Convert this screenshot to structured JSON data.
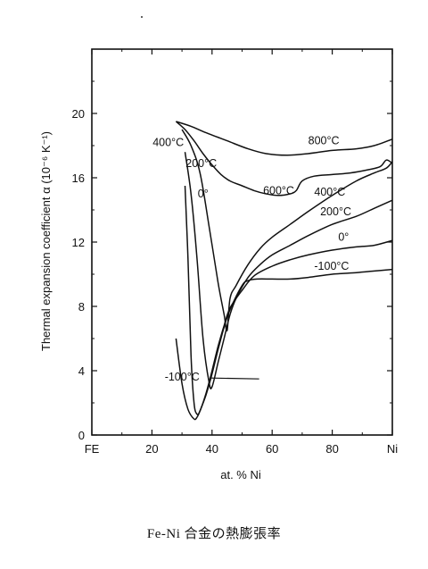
{
  "chart_data": {
    "type": "line",
    "caption": "Fe-Ni 合金の熱膨張率",
    "xlabel": "at. % Ni",
    "ylabel": "Thermal expansion coefficient α (10⁻⁶ K⁻¹)",
    "xlim": [
      0,
      100
    ],
    "ylim": [
      0,
      24
    ],
    "xticks": [
      {
        "value": 0,
        "label": "FE"
      },
      {
        "value": 20,
        "label": "20"
      },
      {
        "value": 40,
        "label": "40"
      },
      {
        "value": 60,
        "label": "60"
      },
      {
        "value": 80,
        "label": "80"
      },
      {
        "value": 100,
        "label": "Ni"
      }
    ],
    "yticks": [
      {
        "value": 0,
        "label": "0"
      },
      {
        "value": 4,
        "label": "4"
      },
      {
        "value": 8,
        "label": "8"
      },
      {
        "value": 12,
        "label": "12"
      },
      {
        "value": 16,
        "label": "16"
      },
      {
        "value": 20,
        "label": "20"
      }
    ],
    "grid": false,
    "legend": "inline labels",
    "series": [
      {
        "name": "800°C",
        "label_at": [
          72,
          18.3
        ],
        "x": [
          28,
          33,
          38,
          45,
          52,
          58,
          65,
          72,
          80,
          88,
          94,
          100
        ],
        "y": [
          19.5,
          19.2,
          18.8,
          18.3,
          17.8,
          17.5,
          17.4,
          17.5,
          17.7,
          17.8,
          18.0,
          18.4
        ]
      },
      {
        "name": "600°C",
        "label_at": [
          57,
          15.2
        ],
        "x": [
          28,
          31,
          34,
          37,
          40,
          43,
          46,
          50,
          54,
          58,
          62,
          66,
          68,
          70,
          74,
          80,
          86,
          92,
          96,
          98,
          100
        ],
        "y": [
          19.5,
          19.0,
          18.3,
          17.5,
          16.8,
          16.2,
          15.8,
          15.5,
          15.2,
          15.0,
          14.9,
          15.0,
          15.2,
          15.8,
          16.1,
          16.2,
          16.3,
          16.5,
          16.7,
          17.1,
          16.9
        ]
      },
      {
        "name": "400°C",
        "label_at": [
          74,
          15.1
        ],
        "x": [
          30,
          33,
          36,
          39,
          42,
          44,
          45,
          46,
          48,
          52,
          56,
          60,
          66,
          72,
          80,
          88,
          94,
          98,
          100
        ],
        "y": [
          19.0,
          18.0,
          16.3,
          13.0,
          9.5,
          7.5,
          6.5,
          8.5,
          9.3,
          10.6,
          11.6,
          12.3,
          13.1,
          13.9,
          14.9,
          15.8,
          16.3,
          16.6,
          17.0
        ]
      },
      {
        "name": "200°C",
        "label_at": [
          76,
          13.9
        ],
        "x": [
          31,
          33,
          35,
          37,
          39,
          40,
          42,
          44,
          46,
          48,
          52,
          56,
          60,
          66,
          72,
          80,
          88,
          94,
          100
        ],
        "y": [
          17.6,
          15.0,
          11.0,
          6.0,
          3.3,
          3.0,
          4.5,
          6.0,
          7.5,
          8.5,
          9.8,
          10.6,
          11.2,
          11.8,
          12.4,
          13.1,
          13.6,
          14.1,
          14.6
        ]
      },
      {
        "name": "0°",
        "label_at": [
          82,
          12.3
        ],
        "x": [
          31,
          32,
          33,
          34,
          35,
          36,
          38,
          40,
          42,
          44,
          46,
          50,
          54,
          60,
          66,
          72,
          80,
          88,
          94,
          100
        ],
        "y": [
          15.5,
          11.0,
          5.0,
          2.0,
          1.3,
          1.5,
          2.6,
          4.0,
          5.5,
          6.8,
          7.9,
          9.0,
          9.9,
          10.5,
          10.9,
          11.2,
          11.5,
          11.7,
          11.8,
          12.1
        ]
      },
      {
        "name": "-100°C",
        "label_at": [
          74,
          10.5
        ],
        "x": [
          28,
          30,
          32,
          34,
          35,
          36,
          38,
          40,
          42,
          44,
          46,
          50,
          52,
          55,
          60,
          66,
          72,
          80,
          88,
          94,
          100
        ],
        "y": [
          6.0,
          3.2,
          1.6,
          1.0,
          1.1,
          1.5,
          2.5,
          3.8,
          5.3,
          6.7,
          7.8,
          9.3,
          9.6,
          9.7,
          9.7,
          9.7,
          9.8,
          10.0,
          10.1,
          10.2,
          10.3
        ]
      }
    ],
    "series_label_positions": {
      "400°C-left": [
        21,
        18.2
      ],
      "200°C-left": [
        23,
        16.9
      ],
      "0°-left": [
        26,
        15.1
      ],
      "-100°C-left": [
        18,
        3.6
      ]
    },
    "extra_labels": [
      {
        "text": "400°C",
        "x": 6,
        "y": 18.2,
        "anchor": "start"
      },
      {
        "text": "200°C",
        "x": 17,
        "y": 16.9,
        "anchor": "start"
      },
      {
        "text": "0°",
        "x": 21,
        "y": 15.0,
        "anchor": "start"
      },
      {
        "text": "-100°C",
        "x": 10,
        "y": 3.6,
        "anchor": "start"
      }
    ]
  }
}
